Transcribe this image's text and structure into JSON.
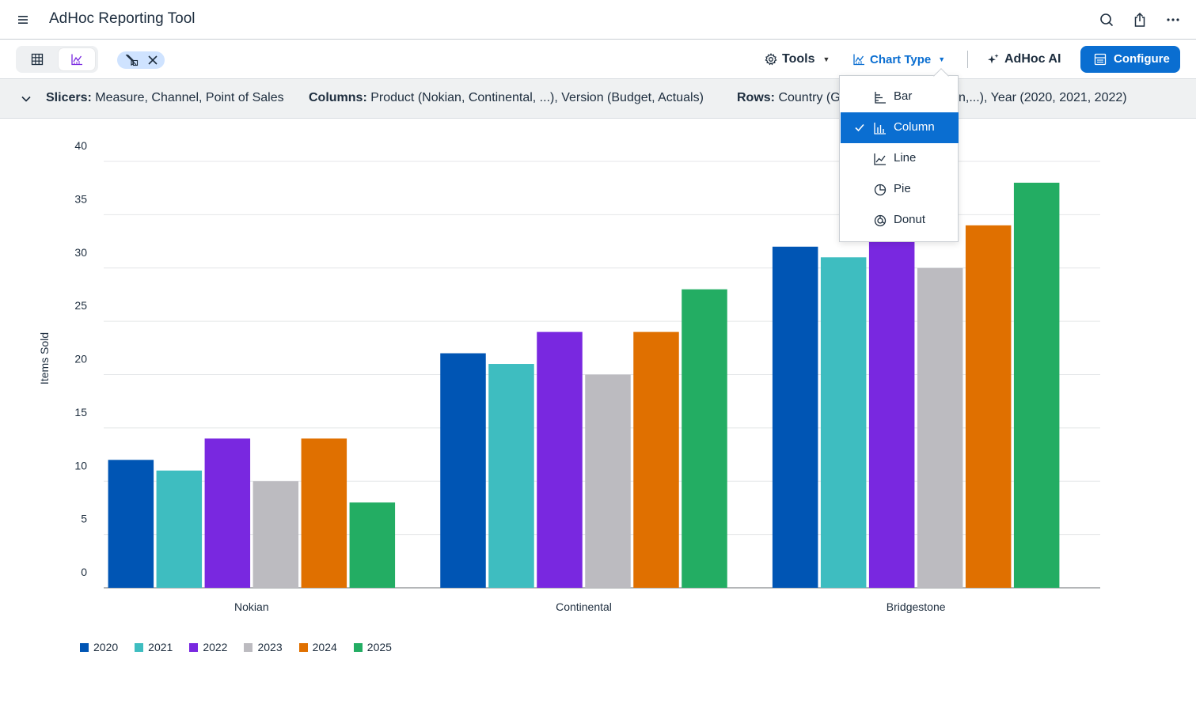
{
  "shell": {
    "title": "AdHoc Reporting Tool"
  },
  "toolbar": {
    "tools_label": "Tools",
    "chart_type_label": "Chart Type",
    "ai_label": "AdHoc AI",
    "configure_label": "Configure"
  },
  "infobar": {
    "slicers_key": "Slicers:",
    "slicers_value": "Measure, Channel, Point of Sales",
    "columns_key": "Columns:",
    "columns_value": "Product (Nokian, Continental, ...), Version (Budget, Actuals)",
    "rows_key": "Rows:",
    "rows_value_left": "Country (G",
    "rows_value_right": "n,...), Year (2020, 2021, 2022)"
  },
  "chart_type_menu": {
    "items": [
      {
        "label": "Bar",
        "icon": "bar-chart-icon",
        "selected": false
      },
      {
        "label": "Column",
        "icon": "column-chart-icon",
        "selected": true
      },
      {
        "label": "Line",
        "icon": "line-chart-icon",
        "selected": false
      },
      {
        "label": "Pie",
        "icon": "pie-chart-icon",
        "selected": false
      },
      {
        "label": "Donut",
        "icon": "donut-chart-icon",
        "selected": false
      }
    ]
  },
  "colors": {
    "accent": "#0a6ed1",
    "series": [
      "#0055b4",
      "#3ebdc0",
      "#7928e0",
      "#bcbbc0",
      "#e07000",
      "#23ad63"
    ]
  },
  "chart_data": {
    "type": "bar",
    "title": "",
    "xlabel": "",
    "ylabel": "Items Sold",
    "ylim": [
      0,
      40
    ],
    "yticks": [
      0,
      5,
      10,
      15,
      20,
      25,
      30,
      35,
      40
    ],
    "grid": true,
    "legend_position": "bottom-left",
    "categories": [
      "Nokian",
      "Continental",
      "Bridgestone"
    ],
    "series": [
      {
        "name": "2020",
        "values": [
          12,
          22,
          32
        ]
      },
      {
        "name": "2021",
        "values": [
          11,
          21,
          31
        ]
      },
      {
        "name": "2022",
        "values": [
          14,
          24,
          33
        ]
      },
      {
        "name": "2023",
        "values": [
          10,
          20,
          30
        ]
      },
      {
        "name": "2024",
        "values": [
          14,
          24,
          34
        ]
      },
      {
        "name": "2025",
        "values": [
          8,
          28,
          38
        ]
      }
    ]
  }
}
